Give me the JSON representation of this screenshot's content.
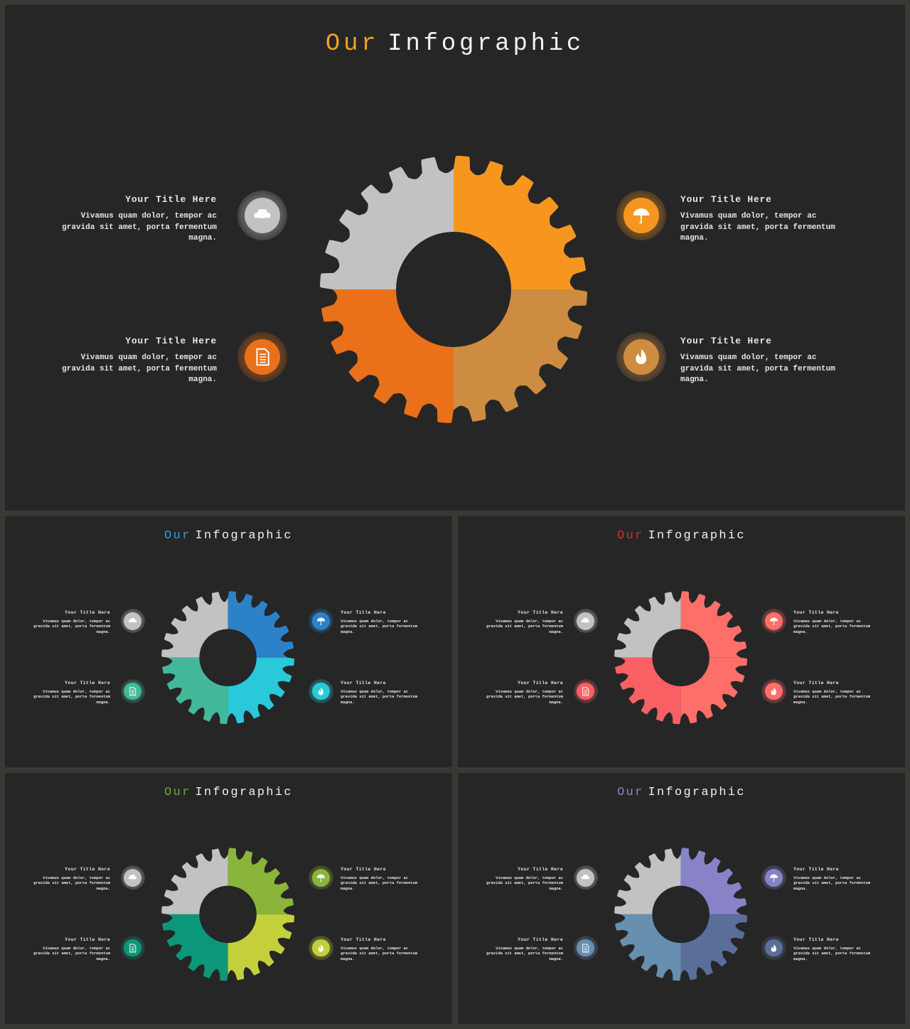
{
  "slides": [
    {
      "id": "slide-large",
      "title_accent": "Our",
      "title_main": "Infographic",
      "accent_color": "#f0a027",
      "gear_colors": [
        "#c2c2c2",
        "#f7961f",
        "#cd8c40",
        "#ea7019"
      ],
      "icon_colors": [
        "#c2c2c2",
        "#f7961f",
        "#ea7019",
        "#cd8c40"
      ],
      "blocks": [
        {
          "title": "Your Title Here",
          "body": "Vivamus quam dolor, tempor ac gravida sit amet, porta fermentum magna.",
          "icon": "car-icon"
        },
        {
          "title": "Your Title Here",
          "body": "Vivamus quam dolor, tempor ac gravida sit amet, porta fermentum magna.",
          "icon": "umbrella-icon"
        },
        {
          "title": "Your Title Here",
          "body": "Vivamus quam dolor, tempor ac gravida sit amet, porta fermentum magna.",
          "icon": "document-icon"
        },
        {
          "title": "Your Title Here",
          "body": "Vivamus quam dolor, tempor ac gravida sit amet, porta fermentum magna.",
          "icon": "flame-icon"
        }
      ]
    },
    {
      "id": "slide-blue",
      "title_accent": "Our",
      "title_main": "Infographic",
      "accent_color": "#2e9fd9",
      "gear_colors": [
        "#c2c2c2",
        "#2b82c9",
        "#29c9d9",
        "#43b89a"
      ],
      "icon_colors": [
        "#c2c2c2",
        "#2b82c9",
        "#43b89a",
        "#29c9d9"
      ],
      "blocks": [
        {
          "title": "Your Title Here",
          "body": "Vivamus quam dolor, tempor ac gravida sit amet, porta fermentum magna.",
          "icon": "car-icon"
        },
        {
          "title": "Your Title Here",
          "body": "Vivamus quam dolor, tempor ac gravida sit amet, porta fermentum magna.",
          "icon": "umbrella-icon"
        },
        {
          "title": "Your Title Here",
          "body": "Vivamus quam dolor, tempor ac gravida sit amet, porta fermentum magna.",
          "icon": "document-icon"
        },
        {
          "title": "Your Title Here",
          "body": "Vivamus quam dolor, tempor ac gravida sit amet, porta fermentum magna.",
          "icon": "flame-icon"
        }
      ]
    },
    {
      "id": "slide-red",
      "title_accent": "Our",
      "title_main": "Infographic",
      "accent_color": "#d92b2b",
      "gear_colors": [
        "#c2c2c2",
        "#ff6f6a",
        "#ff6f6a",
        "#f86063"
      ],
      "icon_colors": [
        "#c2c2c2",
        "#ff6f6a",
        "#f86063",
        "#ff6f6a"
      ],
      "blocks": [
        {
          "title": "Your Title Here",
          "body": "Vivamus quam dolor, tempor ac gravida sit amet, porta fermentum magna.",
          "icon": "car-icon"
        },
        {
          "title": "Your Title Here",
          "body": "Vivamus quam dolor, tempor ac gravida sit amet, porta fermentum magna.",
          "icon": "umbrella-icon"
        },
        {
          "title": "Your Title Here",
          "body": "Vivamus quam dolor, tempor ac gravida sit amet, porta fermentum magna.",
          "icon": "document-icon"
        },
        {
          "title": "Your Title Here",
          "body": "Vivamus quam dolor, tempor ac gravida sit amet, porta fermentum magna.",
          "icon": "flame-icon"
        }
      ]
    },
    {
      "id": "slide-green",
      "title_accent": "Our",
      "title_main": "Infographic",
      "accent_color": "#6aaa3a",
      "gear_colors": [
        "#c2c2c2",
        "#8ab43a",
        "#c3d03c",
        "#0d977a"
      ],
      "icon_colors": [
        "#c2c2c2",
        "#8ab43a",
        "#0d977a",
        "#c3d03c"
      ],
      "blocks": [
        {
          "title": "Your Title Here",
          "body": "Vivamus quam dolor, tempor ac gravida sit amet, porta fermentum magna.",
          "icon": "car-icon"
        },
        {
          "title": "Your Title Here",
          "body": "Vivamus quam dolor, tempor ac gravida sit amet, porta fermentum magna.",
          "icon": "umbrella-icon"
        },
        {
          "title": "Your Title Here",
          "body": "Vivamus quam dolor, tempor ac gravida sit amet, porta fermentum magna.",
          "icon": "document-icon"
        },
        {
          "title": "Your Title Here",
          "body": "Vivamus quam dolor, tempor ac gravida sit amet, porta fermentum magna.",
          "icon": "flame-icon"
        }
      ]
    },
    {
      "id": "slide-purple",
      "title_accent": "Our",
      "title_main": "Infographic",
      "accent_color": "#9b7fc0",
      "gear_colors": [
        "#c2c2c2",
        "#8783c6",
        "#5a6e99",
        "#678fb0"
      ],
      "icon_colors": [
        "#c2c2c2",
        "#8783c6",
        "#678fb0",
        "#5a6e99"
      ],
      "blocks": [
        {
          "title": "Your Title Here",
          "body": "Vivamus quam dolor, tempor ac gravida sit amet, porta fermentum magna.",
          "icon": "car-icon"
        },
        {
          "title": "Your Title Here",
          "body": "Vivamus quam dolor, tempor ac gravida sit amet, porta fermentum magna.",
          "icon": "umbrella-icon"
        },
        {
          "title": "Your Title Here",
          "body": "Vivamus quam dolor, tempor ac gravida sit amet, porta fermentum magna.",
          "icon": "document-icon"
        },
        {
          "title": "Your Title Here",
          "body": "Vivamus quam dolor, tempor ac gravida sit amet, porta fermentum magna.",
          "icon": "flame-icon"
        }
      ]
    }
  ]
}
